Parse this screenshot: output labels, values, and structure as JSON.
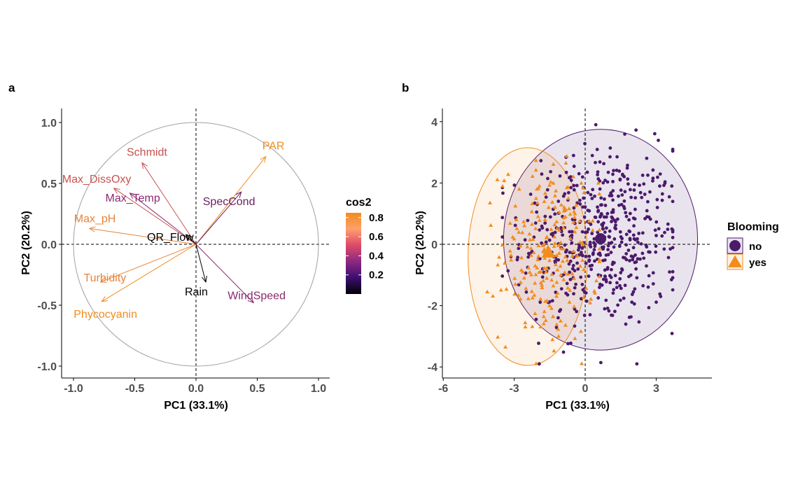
{
  "chart_data": [
    {
      "panel": "a",
      "type": "biplot-variables",
      "xlabel": "PC1 (33.1%)",
      "ylabel": "PC2 (20.2%)",
      "xlim": [
        -1.0,
        1.0
      ],
      "ylim": [
        -1.0,
        1.0
      ],
      "x_ticks": [
        "-1.0",
        "-0.5",
        "0.0",
        "0.5",
        "1.0"
      ],
      "y_ticks": [
        "1.0",
        "0.5",
        "0.0",
        "-0.5",
        "-1.0"
      ],
      "unit_circle": true,
      "reference_lines": "dashed at 0",
      "color_legend": {
        "title": "cos2",
        "ticks": [
          "0.8",
          "0.6",
          "0.4",
          "0.2"
        ],
        "range": [
          0.0,
          0.85
        ],
        "palette": [
          "#000004",
          "#3b0f70",
          "#8c2981",
          "#de4968",
          "#fe9f6d",
          "#f28c1e"
        ]
      },
      "variables": [
        {
          "name": "PAR",
          "x": 0.57,
          "y": 0.72,
          "cos2": 0.84,
          "color": "#f28c1e"
        },
        {
          "name": "Schmidt",
          "x": -0.44,
          "y": 0.67,
          "cos2": 0.65,
          "color": "#c8524f"
        },
        {
          "name": "Max_DissOxy",
          "x": -0.67,
          "y": 0.46,
          "cos2": 0.66,
          "color": "#c8524f"
        },
        {
          "name": "Max_Temp",
          "x": -0.54,
          "y": 0.42,
          "cos2": 0.47,
          "color": "#8c2a6e"
        },
        {
          "name": "SpecCond",
          "x": 0.37,
          "y": 0.43,
          "cos2": 0.33,
          "color": "#6a1f5e"
        },
        {
          "name": "Max_pH",
          "x": -0.87,
          "y": 0.13,
          "cos2": 0.77,
          "color": "#e4843c"
        },
        {
          "name": "QR_Flow",
          "x": -0.08,
          "y": 0.08,
          "cos2": 0.01,
          "color": "#000000"
        },
        {
          "name": "Turbidity",
          "x": -0.78,
          "y": -0.31,
          "cos2": 0.71,
          "color": "#e4843c"
        },
        {
          "name": "Phycocyanin",
          "x": -0.77,
          "y": -0.47,
          "cos2": 0.82,
          "color": "#f28c1e"
        },
        {
          "name": "Rain",
          "x": 0.08,
          "y": -0.31,
          "cos2": 0.1,
          "color": "#000000"
        },
        {
          "name": "WindSpeed",
          "x": 0.47,
          "y": -0.48,
          "cos2": 0.45,
          "color": "#8c2a6e"
        }
      ]
    },
    {
      "panel": "b",
      "type": "scatter",
      "xlabel": "PC1 (33.1%)",
      "ylabel": "PC2 (20.2%)",
      "xlim": [
        -6.1,
        5.4
      ],
      "ylim": [
        -4.25,
        4.4
      ],
      "x_ticks": [
        "-6",
        "-3",
        "0",
        "3"
      ],
      "y_ticks": [
        "4",
        "2",
        "0",
        "-2",
        "-4"
      ],
      "reference_lines": "dashed at 0",
      "legend": {
        "title": "Blooming",
        "entries": [
          {
            "label": "no",
            "color": "#4b1a6b",
            "shape": "circle"
          },
          {
            "label": "yes",
            "color": "#f28c1e",
            "shape": "triangle"
          }
        ]
      },
      "groups": [
        {
          "name": "no",
          "color": "#4b1a6b",
          "shape": "circle",
          "centroid": [
            0.65,
            0.18
          ],
          "ellipse": {
            "x_range": [
              -3.45,
              4.75
            ],
            "y_range": [
              -3.45,
              3.75
            ]
          },
          "point_count_approx": 520,
          "x_range": [
            -3.5,
            3.7
          ],
          "y_range": [
            -3.9,
            3.9
          ]
        },
        {
          "name": "yes",
          "color": "#f28c1e",
          "shape": "triangle",
          "centroid": [
            -1.55,
            -0.3
          ],
          "ellipse": {
            "x_range": [
              -4.95,
              0.1
            ],
            "y_range": [
              -3.95,
              3.15
            ]
          },
          "point_count_approx": 230,
          "x_range": [
            -5.6,
            0.6
          ],
          "y_range": [
            -3.9,
            3.6
          ]
        }
      ]
    }
  ]
}
